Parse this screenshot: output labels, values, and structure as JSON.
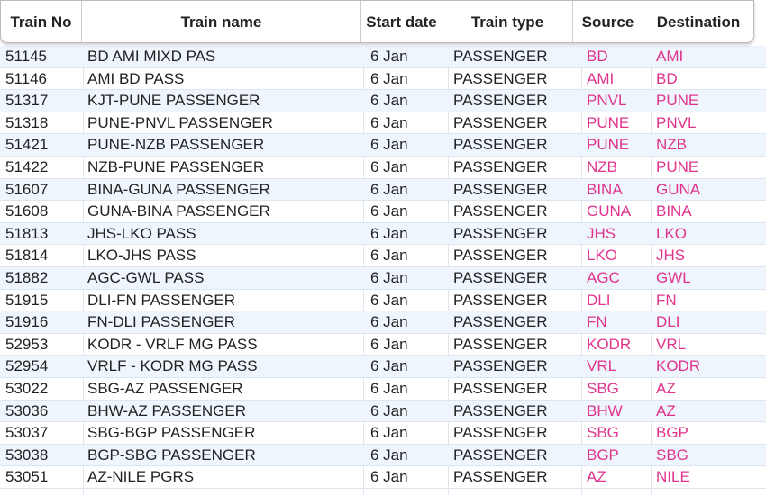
{
  "table": {
    "columns": [
      "Train No",
      "Train name",
      "Start date",
      "Train type",
      "Source",
      "Destination"
    ],
    "rows": [
      [
        "51145",
        "BD AMI MIXD PAS",
        "6 Jan",
        "PASSENGER",
        "BD",
        "AMI"
      ],
      [
        "51146",
        "AMI BD PASS",
        "6 Jan",
        "PASSENGER",
        "AMI",
        "BD"
      ],
      [
        "51317",
        "KJT-PUNE PASSENGER",
        "6 Jan",
        "PASSENGER",
        "PNVL",
        "PUNE"
      ],
      [
        "51318",
        "PUNE-PNVL PASSENGER",
        "6 Jan",
        "PASSENGER",
        "PUNE",
        "PNVL"
      ],
      [
        "51421",
        "PUNE-NZB PASSENGER",
        "6 Jan",
        "PASSENGER",
        "PUNE",
        "NZB"
      ],
      [
        "51422",
        "NZB-PUNE PASSENGER",
        "6 Jan",
        "PASSENGER",
        "NZB",
        "PUNE"
      ],
      [
        "51607",
        "BINA-GUNA PASSENGER",
        "6 Jan",
        "PASSENGER",
        "BINA",
        "GUNA"
      ],
      [
        "51608",
        "GUNA-BINA PASSENGER",
        "6 Jan",
        "PASSENGER",
        "GUNA",
        "BINA"
      ],
      [
        "51813",
        "JHS-LKO PASS",
        "6 Jan",
        "PASSENGER",
        "JHS",
        "LKO"
      ],
      [
        "51814",
        "LKO-JHS PASS",
        "6 Jan",
        "PASSENGER",
        "LKO",
        "JHS"
      ],
      [
        "51882",
        "AGC-GWL PASS",
        "6 Jan",
        "PASSENGER",
        "AGC",
        "GWL"
      ],
      [
        "51915",
        "DLI-FN PASSENGER",
        "6 Jan",
        "PASSENGER",
        "DLI",
        "FN"
      ],
      [
        "51916",
        "FN-DLI PASSENGER",
        "6 Jan",
        "PASSENGER",
        "FN",
        "DLI"
      ],
      [
        "52953",
        "KODR - VRLF MG PASS",
        "6 Jan",
        "PASSENGER",
        "KODR",
        "VRL"
      ],
      [
        "52954",
        "VRLF - KODR MG PASS",
        "6 Jan",
        "PASSENGER",
        "VRL",
        "KODR"
      ],
      [
        "53022",
        "SBG-AZ PASSENGER",
        "6 Jan",
        "PASSENGER",
        "SBG",
        "AZ"
      ],
      [
        "53036",
        "BHW-AZ PASSENGER",
        "6 Jan",
        "PASSENGER",
        "BHW",
        "AZ"
      ],
      [
        "53037",
        "SBG-BGP PASSENGER",
        "6 Jan",
        "PASSENGER",
        "SBG",
        "BGP"
      ],
      [
        "53038",
        "BGP-SBG PASSENGER",
        "6 Jan",
        "PASSENGER",
        "BGP",
        "SBG"
      ],
      [
        "53051",
        "AZ-NILE PGRS",
        "6 Jan",
        "PASSENGER",
        "AZ",
        "NILE"
      ]
    ]
  }
}
